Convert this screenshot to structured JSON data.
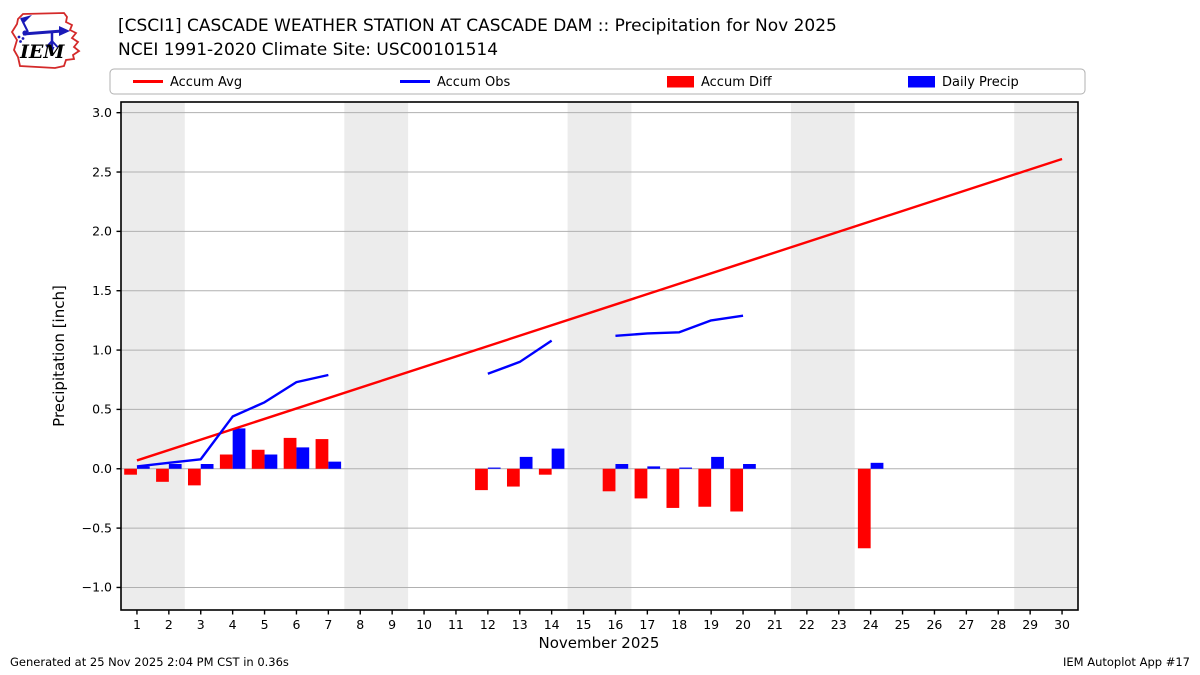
{
  "page": {
    "background": "#ffffff"
  },
  "logo": {
    "text": "IEM"
  },
  "header": {
    "title_line1": "[CSCI1] CASCADE WEATHER STATION AT CASCADE DAM :: Precipitation for Nov 2025",
    "title_line2": "NCEI 1991-2020 Climate Site: USC00101514"
  },
  "legend": {
    "items": [
      {
        "label": "Accum Avg",
        "marker": "line",
        "color": "#ff0000"
      },
      {
        "label": "Accum Obs",
        "marker": "line",
        "color": "#0000ff"
      },
      {
        "label": "Accum Diff",
        "marker": "patch",
        "color": "#ff0000"
      },
      {
        "label": "Daily Precip",
        "marker": "patch",
        "color": "#0000ff"
      }
    ]
  },
  "footer": {
    "left": "Generated at 25 Nov 2025 2:04 PM CST in 0.36s",
    "right": "IEM Autoplot App #17"
  },
  "chart_data": {
    "type": "bar+line composite",
    "title": "[CSCI1] CASCADE WEATHER STATION AT CASCADE DAM :: Precipitation for Nov 2025",
    "subtitle": "NCEI 1991-2020 Climate Site: USC00101514",
    "xlabel": "November 2025",
    "ylabel": "Precipitation [inch]",
    "xlim": [
      0.5,
      30.5
    ],
    "ylim": [
      -1.19,
      3.09
    ],
    "x_ticks": [
      1,
      2,
      3,
      4,
      5,
      6,
      7,
      8,
      9,
      10,
      11,
      12,
      13,
      14,
      15,
      16,
      17,
      18,
      19,
      20,
      21,
      22,
      23,
      24,
      25,
      26,
      27,
      28,
      29,
      30
    ],
    "y_ticks": [
      -1.0,
      -0.5,
      0.0,
      0.5,
      1.0,
      1.5,
      2.0,
      2.5,
      3.0
    ],
    "y_tick_labels": [
      "−1.0",
      "−0.5",
      "0.0",
      "0.5",
      "1.0",
      "1.5",
      "2.0",
      "2.5",
      "3.0"
    ],
    "grid": "horizontal",
    "legend_position": "top",
    "colors": {
      "band": "#ececec",
      "grid": "#b0b0b0",
      "spine": "#000000",
      "accum_avg": "#ff0000",
      "accum_obs": "#0000ff",
      "accum_diff": "#ff0000",
      "daily_precip": "#0000ff"
    },
    "weekend_bands": [
      [
        0.5,
        2.5
      ],
      [
        7.5,
        9.5
      ],
      [
        14.5,
        16.5
      ],
      [
        21.5,
        23.5
      ],
      [
        28.5,
        30.5
      ]
    ],
    "series": [
      {
        "name": "Accum Avg",
        "type": "line",
        "color": "#ff0000",
        "segments": [
          [
            [
              1,
              0.07
            ],
            [
              30,
              2.61
            ]
          ]
        ]
      },
      {
        "name": "Accum Obs",
        "type": "line",
        "color": "#0000ff",
        "segments": [
          [
            [
              1,
              0.02
            ],
            [
              2,
              0.05
            ],
            [
              3,
              0.08
            ],
            [
              4,
              0.44
            ],
            [
              5,
              0.56
            ],
            [
              6,
              0.73
            ],
            [
              7,
              0.79
            ]
          ],
          [
            [
              12,
              0.8
            ],
            [
              13,
              0.9
            ],
            [
              14,
              1.08
            ]
          ],
          [
            [
              16,
              1.12
            ],
            [
              17,
              1.14
            ],
            [
              18,
              1.15
            ],
            [
              19,
              1.25
            ],
            [
              20,
              1.29
            ]
          ]
        ]
      },
      {
        "name": "Accum Diff",
        "type": "bar",
        "color": "#ff0000",
        "bar_offset": -0.2,
        "bar_width": 0.4,
        "points": [
          [
            1,
            -0.05
          ],
          [
            2,
            -0.11
          ],
          [
            3,
            -0.14
          ],
          [
            4,
            0.12
          ],
          [
            5,
            0.16
          ],
          [
            6,
            0.26
          ],
          [
            7,
            0.25
          ],
          [
            12,
            -0.18
          ],
          [
            13,
            -0.15
          ],
          [
            14,
            -0.05
          ],
          [
            16,
            -0.19
          ],
          [
            17,
            -0.25
          ],
          [
            18,
            -0.33
          ],
          [
            19,
            -0.32
          ],
          [
            20,
            -0.36
          ],
          [
            24,
            -0.67
          ]
        ]
      },
      {
        "name": "Daily Precip",
        "type": "bar",
        "color": "#0000ff",
        "bar_offset": 0.2,
        "bar_width": 0.4,
        "points": [
          [
            1,
            0.02
          ],
          [
            2,
            0.04
          ],
          [
            3,
            0.04
          ],
          [
            4,
            0.34
          ],
          [
            5,
            0.12
          ],
          [
            6,
            0.18
          ],
          [
            7,
            0.06
          ],
          [
            12,
            0.01
          ],
          [
            13,
            0.1
          ],
          [
            14,
            0.17
          ],
          [
            16,
            0.04
          ],
          [
            17,
            0.02
          ],
          [
            18,
            0.01
          ],
          [
            19,
            0.1
          ],
          [
            20,
            0.04
          ],
          [
            24,
            0.05
          ]
        ]
      }
    ]
  }
}
